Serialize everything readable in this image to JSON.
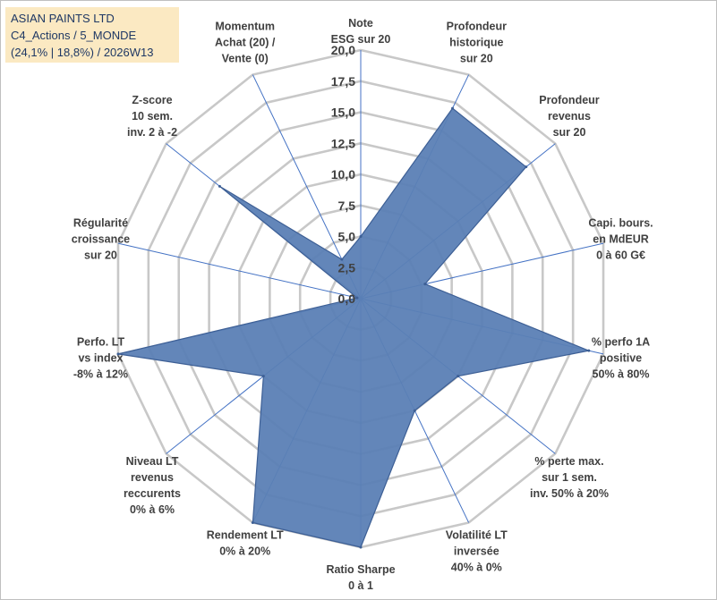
{
  "header": {
    "company": "ASIAN PAINTS LTD",
    "category": "C4_Actions / 5_MONDE",
    "summary": "(24,1% | 18,8%) / 2026W13"
  },
  "colors": {
    "fill": "#5b7fb5",
    "stroke": "#3d5f95",
    "grid": "#c8c8c8",
    "spoke": "#4472c4",
    "title_bg": "#fbe9c2"
  },
  "chart_data": {
    "type": "radar",
    "rmax": 20,
    "ticks": [
      "0,0",
      "2,5",
      "5,0",
      "7,5",
      "10,0",
      "12,5",
      "15,0",
      "17,5",
      "20,0"
    ],
    "tick_values": [
      0,
      2.5,
      5,
      7.5,
      10,
      12.5,
      15,
      17.5,
      20
    ],
    "axes": [
      {
        "label": [
          "Note",
          "ESG sur 20"
        ],
        "value": 5.0
      },
      {
        "label": [
          "Profondeur",
          "historique",
          "sur 20"
        ],
        "value": 17.0
      },
      {
        "label": [
          "Profondeur",
          "revenus",
          "sur 20"
        ],
        "value": 17.0
      },
      {
        "label": [
          "Capi. bours.",
          "en MdEUR",
          "0 à 60 G€"
        ],
        "value": 5.3
      },
      {
        "label": [
          "% perfo 1A",
          "positive",
          "50% à 80%"
        ],
        "value": 18.8
      },
      {
        "label": [
          "% perte max.",
          "sur 1 sem.",
          "inv. 50% à 20%"
        ],
        "value": 10.0
      },
      {
        "label": [
          "Volatilité LT",
          "inversée",
          "40% à 0%"
        ],
        "value": 10.0
      },
      {
        "label": [
          "Ratio Sharpe",
          "0 à 1"
        ],
        "value": 20.0
      },
      {
        "label": [
          "Rendement LT",
          "0% à 20%"
        ],
        "value": 20.0
      },
      {
        "label": [
          "Niveau LT",
          "revenus",
          "reccurents",
          "0% à 6%"
        ],
        "value": 10.0
      },
      {
        "label": [
          "Perfo. LT",
          "vs index",
          "-8% à 12%"
        ],
        "value": 20.0
      },
      {
        "label": [
          "Régularité",
          "croissance",
          "sur 20"
        ],
        "value": 0.3
      },
      {
        "label": [
          "Z-score",
          "10 sem.",
          "inv. 2 à -2"
        ],
        "value": 14.5
      },
      {
        "label": [
          "Momentum",
          "Achat (20) /",
          "Vente (0)"
        ],
        "value": 3.5
      }
    ]
  }
}
